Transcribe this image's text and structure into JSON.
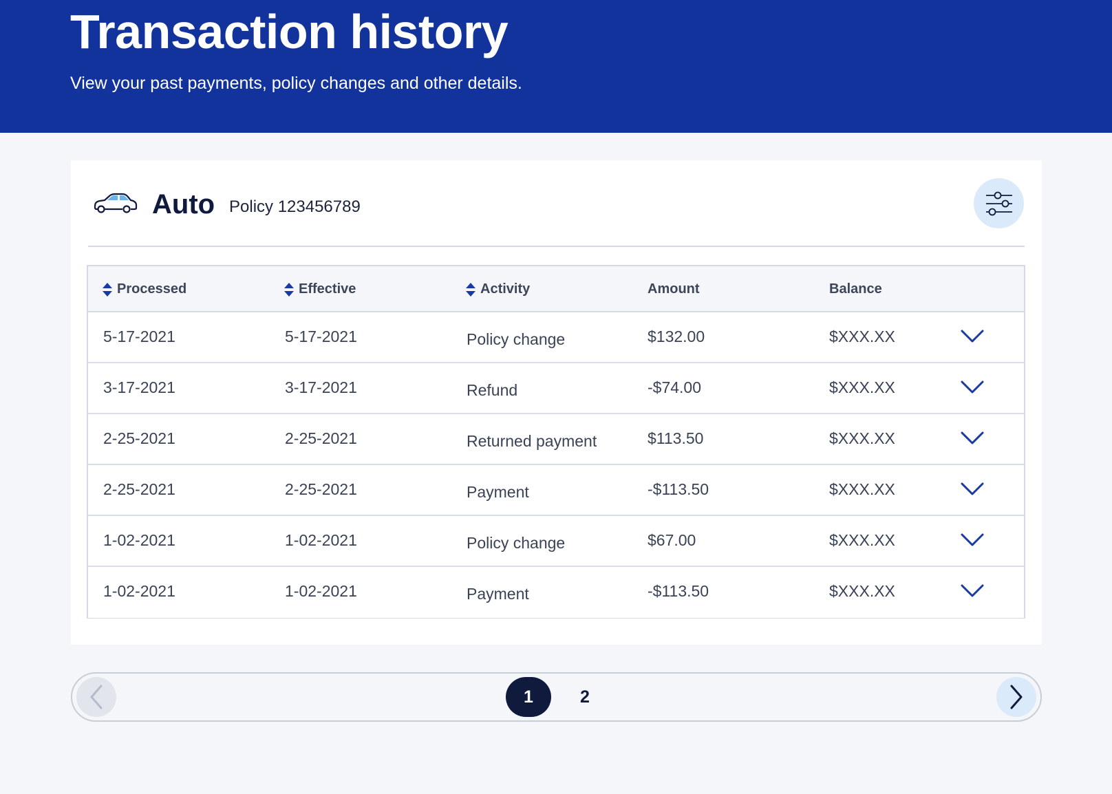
{
  "header": {
    "title": "Transaction history",
    "subtitle": "View your past payments, policy changes and other details."
  },
  "policy": {
    "line": "Auto",
    "policy_label": "Policy 123456789",
    "icon": "car-icon",
    "filter_icon": "sliders-icon"
  },
  "table": {
    "columns": [
      "Processed",
      "Effective",
      "Activity",
      "Amount",
      "Balance"
    ],
    "sortable": [
      true,
      true,
      true,
      false,
      false
    ],
    "rows": [
      {
        "processed": "5-17-2021",
        "effective": "5-17-2021",
        "activity": "Policy change",
        "amount": "$132.00",
        "balance": "$XXX.XX"
      },
      {
        "processed": "3-17-2021",
        "effective": "3-17-2021",
        "activity": "Refund",
        "amount": "-$74.00",
        "balance": "$XXX.XX"
      },
      {
        "processed": "2-25-2021",
        "effective": "2-25-2021",
        "activity": "Returned payment",
        "amount": "$113.50",
        "balance": "$XXX.XX"
      },
      {
        "processed": "2-25-2021",
        "effective": "2-25-2021",
        "activity": "Payment",
        "amount": "-$113.50",
        "balance": "$XXX.XX"
      },
      {
        "processed": "1-02-2021",
        "effective": "1-02-2021",
        "activity": "Policy change",
        "amount": "$67.00",
        "balance": "$XXX.XX"
      },
      {
        "processed": "1-02-2021",
        "effective": "1-02-2021",
        "activity": "Payment",
        "amount": "-$113.50",
        "balance": "$XXX.XX"
      }
    ]
  },
  "pagination": {
    "pages": [
      "1",
      "2"
    ],
    "current": "1"
  },
  "colors": {
    "header_bg": "#12329c",
    "accent": "#1a3aa3",
    "dark_navy": "#101a3d",
    "light_blue": "#dbeafa"
  }
}
